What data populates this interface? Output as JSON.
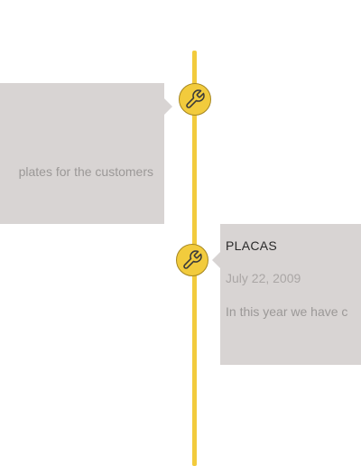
{
  "timeline": {
    "items": [
      {
        "text": "plates for the customers",
        "icon": "wrench-icon"
      },
      {
        "title": "PLACAS",
        "date": "July 22, 2009",
        "text": "In this year we have c",
        "icon": "wrench-icon"
      }
    ]
  },
  "colors": {
    "accent": "#f2cb3d",
    "card": "#d8d4d3",
    "text_muted": "#9b9897",
    "title": "#2a2a2a"
  }
}
